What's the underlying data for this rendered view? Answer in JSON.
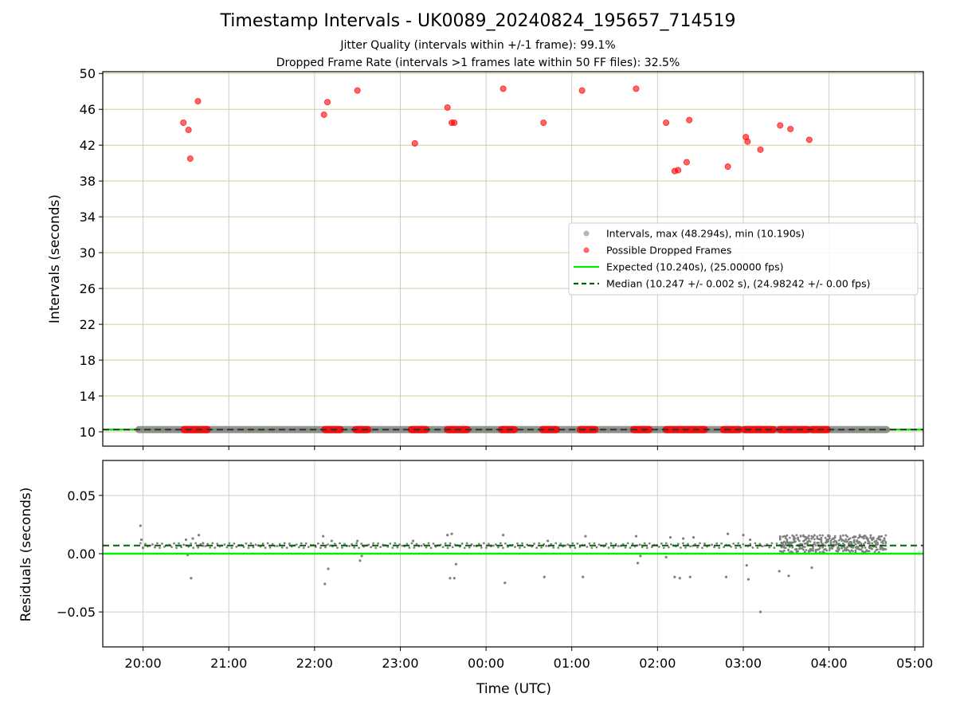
{
  "title": "Timestamp Intervals - UK0089_20240824_195657_714519",
  "subtitle_1": "Jitter Quality (intervals within +/-1 frame): 99.1%",
  "subtitle_2": "Dropped Frame Rate (intervals >1 frames late within 50 FF files): 32.5%",
  "colors": {
    "normal_points": "#808080",
    "dropped_points": "#ff0000",
    "expected_line": "#00ee00",
    "median_line": "#006400",
    "grid_major": "#cccccc",
    "grid_y_top": "#d8c99a"
  },
  "chart_data": [
    {
      "type": "scatter",
      "panel": "intervals",
      "ylabel": "Intervals (seconds)",
      "xlabel": "",
      "xlim_hours": [
        19.53,
        29.1
      ],
      "ylim": [
        8.4,
        50.2
      ],
      "yticks": [
        10,
        14,
        18,
        22,
        26,
        30,
        34,
        38,
        42,
        46,
        50
      ],
      "ytick_labels": [
        "10",
        "14",
        "18",
        "22",
        "26",
        "30",
        "34",
        "38",
        "42",
        "46",
        "50"
      ],
      "xticks_hours": [
        20,
        21,
        22,
        23,
        24,
        25,
        26,
        27,
        28,
        29
      ],
      "grid": "on",
      "legend_position": "center-right",
      "legend": [
        {
          "label": "Intervals, max (48.294s), min (10.190s)",
          "kind": "point",
          "color": "#808080"
        },
        {
          "label": "Possible Dropped Frames",
          "kind": "point",
          "color": "#ff0000"
        },
        {
          "label": "Expected (10.240s), (25.00000 fps)",
          "kind": "line",
          "color": "#00ee00"
        },
        {
          "label": "Median (10.247 +/- 0.002 s), (24.98242 +/- 0.00 fps)",
          "kind": "dashed",
          "color": "#006400"
        }
      ],
      "expected_value": 10.24,
      "median_value": 10.247,
      "normal_band": {
        "value": 10.247,
        "x_start": 19.95,
        "x_end": 28.67
      },
      "dropped_band_segments": [
        [
          20.48,
          20.75
        ],
        [
          22.12,
          22.3
        ],
        [
          22.48,
          22.62
        ],
        [
          23.13,
          23.3
        ],
        [
          23.55,
          23.78
        ],
        [
          24.18,
          24.33
        ],
        [
          24.66,
          24.82
        ],
        [
          25.1,
          25.27
        ],
        [
          25.72,
          25.9
        ],
        [
          26.1,
          26.55
        ],
        [
          26.77,
          26.95
        ],
        [
          27.02,
          27.35
        ],
        [
          27.43,
          27.75
        ],
        [
          27.8,
          27.98
        ]
      ],
      "dropped_points": [
        {
          "x": 20.47,
          "y": 44.5
        },
        {
          "x": 20.53,
          "y": 43.7
        },
        {
          "x": 20.55,
          "y": 40.5
        },
        {
          "x": 20.64,
          "y": 46.9
        },
        {
          "x": 22.11,
          "y": 45.4
        },
        {
          "x": 22.15,
          "y": 46.8
        },
        {
          "x": 22.5,
          "y": 48.1
        },
        {
          "x": 23.17,
          "y": 42.2
        },
        {
          "x": 23.55,
          "y": 46.2
        },
        {
          "x": 23.6,
          "y": 44.5
        },
        {
          "x": 23.63,
          "y": 44.5
        },
        {
          "x": 24.2,
          "y": 48.3
        },
        {
          "x": 24.67,
          "y": 44.5
        },
        {
          "x": 25.12,
          "y": 48.1
        },
        {
          "x": 25.75,
          "y": 48.3
        },
        {
          "x": 26.1,
          "y": 44.5
        },
        {
          "x": 26.2,
          "y": 39.1
        },
        {
          "x": 26.24,
          "y": 39.2
        },
        {
          "x": 26.34,
          "y": 40.1
        },
        {
          "x": 26.37,
          "y": 44.8
        },
        {
          "x": 26.82,
          "y": 39.6
        },
        {
          "x": 27.03,
          "y": 42.9
        },
        {
          "x": 27.05,
          "y": 42.4
        },
        {
          "x": 27.2,
          "y": 41.5
        },
        {
          "x": 27.43,
          "y": 44.2
        },
        {
          "x": 27.55,
          "y": 43.8
        },
        {
          "x": 27.77,
          "y": 42.6
        }
      ]
    },
    {
      "type": "scatter",
      "panel": "residuals",
      "ylabel": "Residuals (seconds)",
      "xlabel": "Time (UTC)",
      "xlim_hours": [
        19.53,
        29.1
      ],
      "ylim": [
        -0.08,
        0.08
      ],
      "yticks": [
        0.05,
        0.0,
        -0.05
      ],
      "ytick_labels": [
        "0.05",
        "0.00",
        "−0.05"
      ],
      "xticks_hours": [
        20,
        21,
        22,
        23,
        24,
        25,
        26,
        27,
        28,
        29
      ],
      "xtick_labels": [
        "20:00",
        "21:00",
        "22:00",
        "23:00",
        "00:00",
        "01:00",
        "02:00",
        "03:00",
        "04:00",
        "05:00"
      ],
      "grid": "on",
      "expected_value": 0.0,
      "median_value": 0.007,
      "residual_points": [
        {
          "x": 19.97,
          "y": 0.024
        },
        {
          "x": 19.98,
          "y": 0.012
        },
        {
          "x": 20.0,
          "y": 0.005
        },
        {
          "x": 20.5,
          "y": 0.012
        },
        {
          "x": 20.52,
          "y": -0.001
        },
        {
          "x": 20.56,
          "y": -0.021
        },
        {
          "x": 20.58,
          "y": 0.013
        },
        {
          "x": 20.65,
          "y": 0.016
        },
        {
          "x": 20.7,
          "y": 0.009
        },
        {
          "x": 22.1,
          "y": 0.015
        },
        {
          "x": 22.12,
          "y": -0.026
        },
        {
          "x": 22.16,
          "y": -0.013
        },
        {
          "x": 22.2,
          "y": 0.011
        },
        {
          "x": 22.5,
          "y": 0.011
        },
        {
          "x": 22.53,
          "y": -0.006
        },
        {
          "x": 22.55,
          "y": -0.002
        },
        {
          "x": 23.15,
          "y": 0.011
        },
        {
          "x": 23.55,
          "y": 0.016
        },
        {
          "x": 23.58,
          "y": -0.021
        },
        {
          "x": 23.6,
          "y": 0.017
        },
        {
          "x": 23.63,
          "y": -0.021
        },
        {
          "x": 23.65,
          "y": -0.009
        },
        {
          "x": 24.2,
          "y": 0.016
        },
        {
          "x": 24.22,
          "y": -0.025
        },
        {
          "x": 24.68,
          "y": -0.02
        },
        {
          "x": 24.72,
          "y": 0.011
        },
        {
          "x": 25.13,
          "y": -0.02
        },
        {
          "x": 25.16,
          "y": 0.015
        },
        {
          "x": 25.75,
          "y": 0.015
        },
        {
          "x": 25.77,
          "y": -0.008
        },
        {
          "x": 25.8,
          "y": -0.002
        },
        {
          "x": 26.1,
          "y": -0.003
        },
        {
          "x": 26.15,
          "y": 0.014
        },
        {
          "x": 26.2,
          "y": -0.02
        },
        {
          "x": 26.26,
          "y": -0.021
        },
        {
          "x": 26.3,
          "y": 0.013
        },
        {
          "x": 26.38,
          "y": -0.02
        },
        {
          "x": 26.42,
          "y": 0.014
        },
        {
          "x": 26.8,
          "y": -0.02
        },
        {
          "x": 26.82,
          "y": 0.017
        },
        {
          "x": 27.0,
          "y": 0.016
        },
        {
          "x": 27.04,
          "y": -0.01
        },
        {
          "x": 27.06,
          "y": -0.022
        },
        {
          "x": 27.08,
          "y": 0.012
        },
        {
          "x": 27.2,
          "y": -0.05
        },
        {
          "x": 27.42,
          "y": -0.015
        },
        {
          "x": 27.53,
          "y": -0.019
        },
        {
          "x": 27.8,
          "y": -0.012
        }
      ],
      "dense_band": {
        "x_start": 27.43,
        "x_end": 28.67,
        "y_min": 0.001,
        "y_max": 0.016
      }
    }
  ]
}
